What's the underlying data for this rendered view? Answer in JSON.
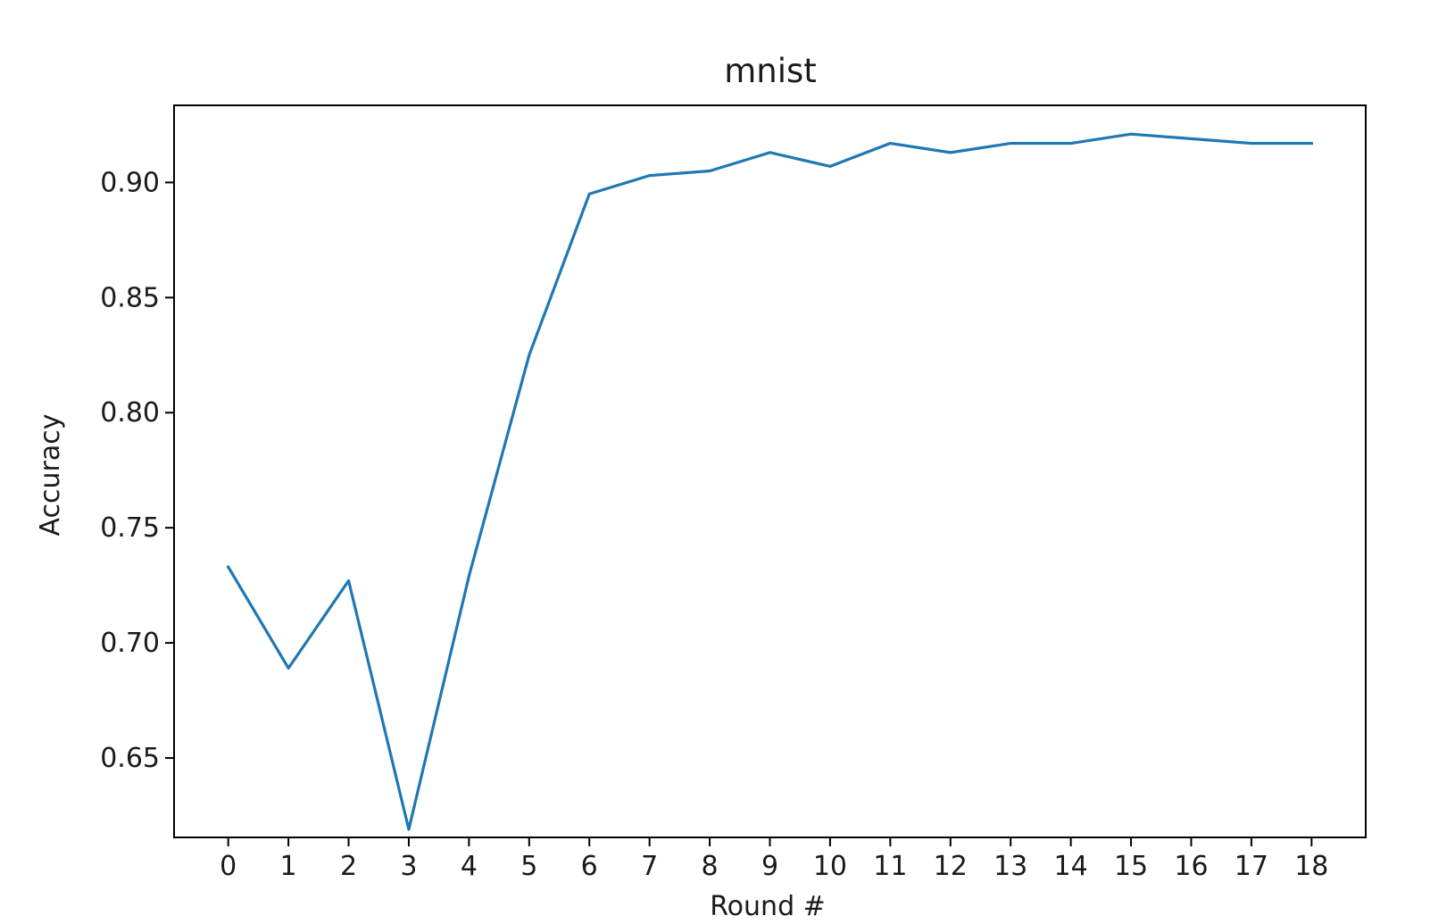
{
  "chart_data": {
    "type": "line",
    "title": "mnist",
    "xlabel": "Round #",
    "ylabel": "Accuracy",
    "x": [
      0,
      1,
      2,
      3,
      4,
      5,
      6,
      7,
      8,
      9,
      10,
      11,
      12,
      13,
      14,
      15,
      16,
      17,
      18
    ],
    "x_tick_labels": [
      "0",
      "1",
      "2",
      "3",
      "4",
      "5",
      "6",
      "7",
      "8",
      "9",
      "10",
      "11",
      "12",
      "13",
      "14",
      "15",
      "16",
      "17",
      "18"
    ],
    "y_ticks": [
      0.65,
      0.7,
      0.75,
      0.8,
      0.85,
      0.9
    ],
    "y_tick_labels": [
      "0.65",
      "0.70",
      "0.75",
      "0.80",
      "0.85",
      "0.90"
    ],
    "xlim": [
      -0.9,
      18.9
    ],
    "ylim": [
      0.6155,
      0.9335
    ],
    "grid": false,
    "series": [
      {
        "values": [
          0.733,
          0.689,
          0.727,
          0.619,
          0.729,
          0.825,
          0.895,
          0.903,
          0.905,
          0.913,
          0.907,
          0.917,
          0.913,
          0.917,
          0.917,
          0.921,
          0.919,
          0.917,
          0.917
        ],
        "color": "#1f77b4"
      }
    ]
  }
}
